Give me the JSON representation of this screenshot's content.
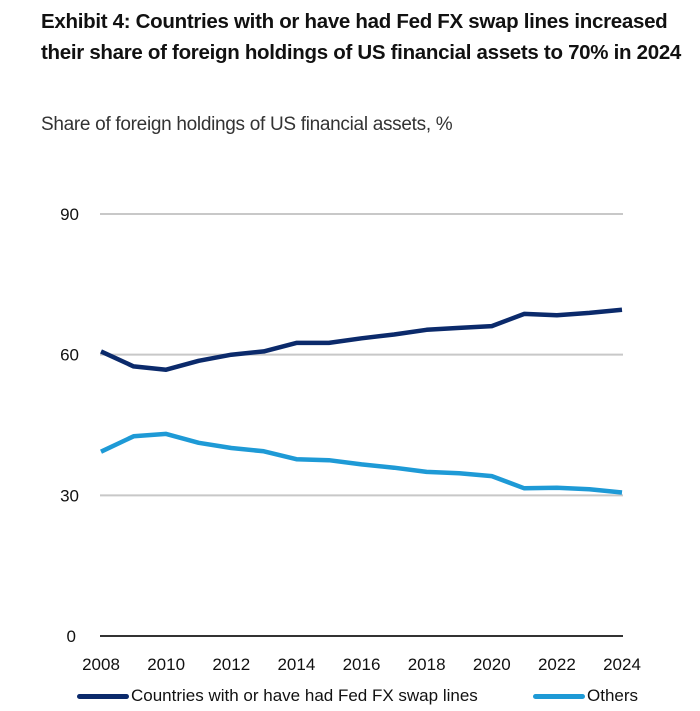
{
  "header": {
    "title": "Exhibit 4: Countries with or have had Fed FX swap lines increased their share of foreign holdings of US financial assets to 70% in 2024",
    "subtitle": "Share of foreign holdings of US financial assets, %"
  },
  "colors": {
    "swap": "#0b2a6b",
    "others": "#1e9ad6",
    "grid": "#c8c8c8",
    "axis": "#333333"
  },
  "chart_data": {
    "type": "line",
    "title": "Exhibit 4: Countries with or have had Fed FX swap lines increased their share of foreign holdings of US financial assets to 70% in 2024",
    "subtitle": "Share of foreign holdings of US financial assets, %",
    "xlabel": "",
    "ylabel": "",
    "x": [
      2008,
      2009,
      2010,
      2011,
      2012,
      2013,
      2014,
      2015,
      2016,
      2017,
      2018,
      2019,
      2020,
      2021,
      2022,
      2023,
      2024
    ],
    "xlim": [
      2008,
      2024
    ],
    "ylim": [
      0,
      90
    ],
    "yticks": [
      0,
      30,
      60,
      90
    ],
    "xticks": [
      2008,
      2010,
      2012,
      2014,
      2016,
      2018,
      2020,
      2022,
      2024
    ],
    "grid": true,
    "legend_position": "bottom",
    "series": [
      {
        "name": "Countries with or have had Fed FX swap lines",
        "color": "#0b2a6b",
        "values": [
          60.7,
          57.5,
          56.8,
          58.7,
          60.0,
          60.7,
          62.5,
          62.5,
          63.5,
          64.3,
          65.3,
          65.7,
          66.1,
          68.7,
          68.4,
          68.9,
          69.6
        ]
      },
      {
        "name": "Others",
        "color": "#1e9ad6",
        "values": [
          39.3,
          42.6,
          43.1,
          41.2,
          40.1,
          39.4,
          37.7,
          37.5,
          36.6,
          35.9,
          35.0,
          34.7,
          34.1,
          31.5,
          31.6,
          31.3,
          30.6
        ]
      }
    ]
  }
}
